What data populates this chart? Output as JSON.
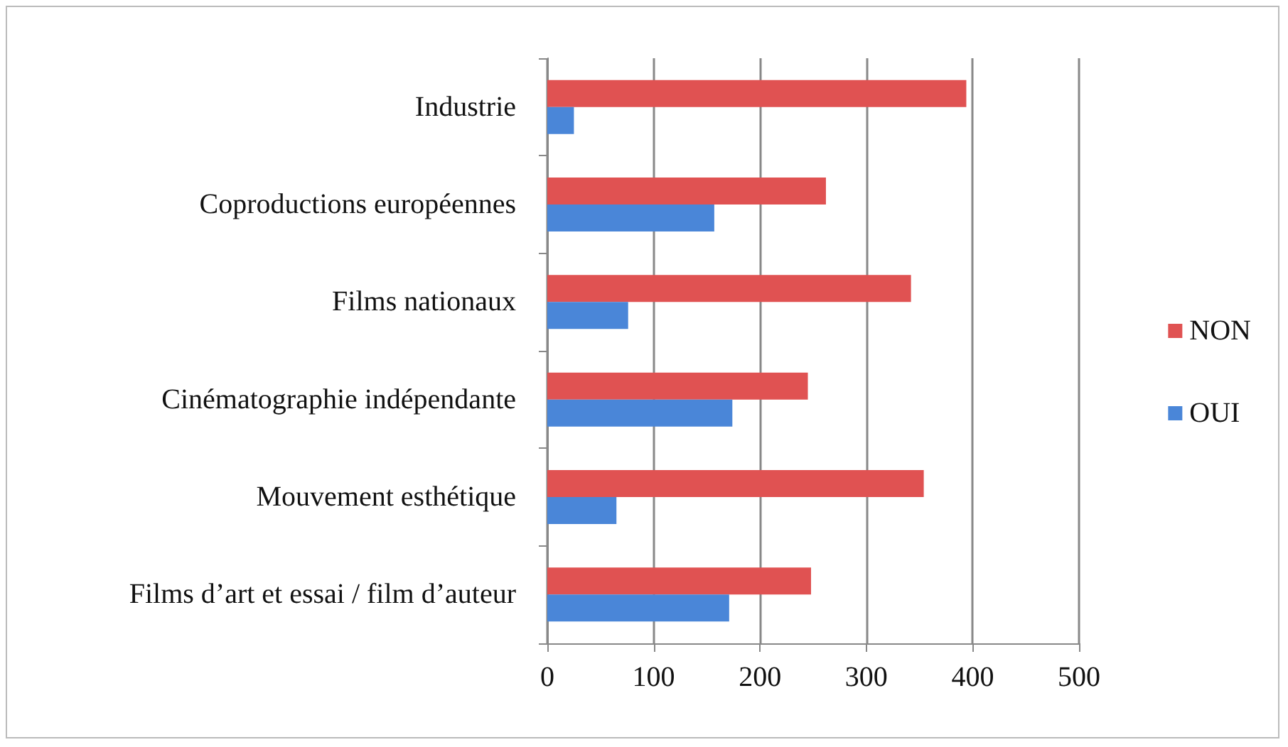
{
  "chart_data": {
    "type": "bar",
    "orientation": "horizontal",
    "categories": [
      "Industrie",
      "Coproductions européennes",
      "Films nationaux",
      "Cinématographie indépendante",
      "Mouvement esthétique",
      "Films d’art et essai / film d’auteur"
    ],
    "series": [
      {
        "name": "NON",
        "color": "#e05252",
        "values": [
          394,
          262,
          342,
          245,
          354,
          248
        ]
      },
      {
        "name": "OUI",
        "color": "#4a86d8",
        "values": [
          25,
          157,
          76,
          174,
          65,
          171
        ]
      }
    ],
    "xlim": [
      0,
      500
    ],
    "xticks": [
      0,
      100,
      200,
      300,
      400,
      500
    ],
    "grid": "x",
    "legend": "right"
  }
}
